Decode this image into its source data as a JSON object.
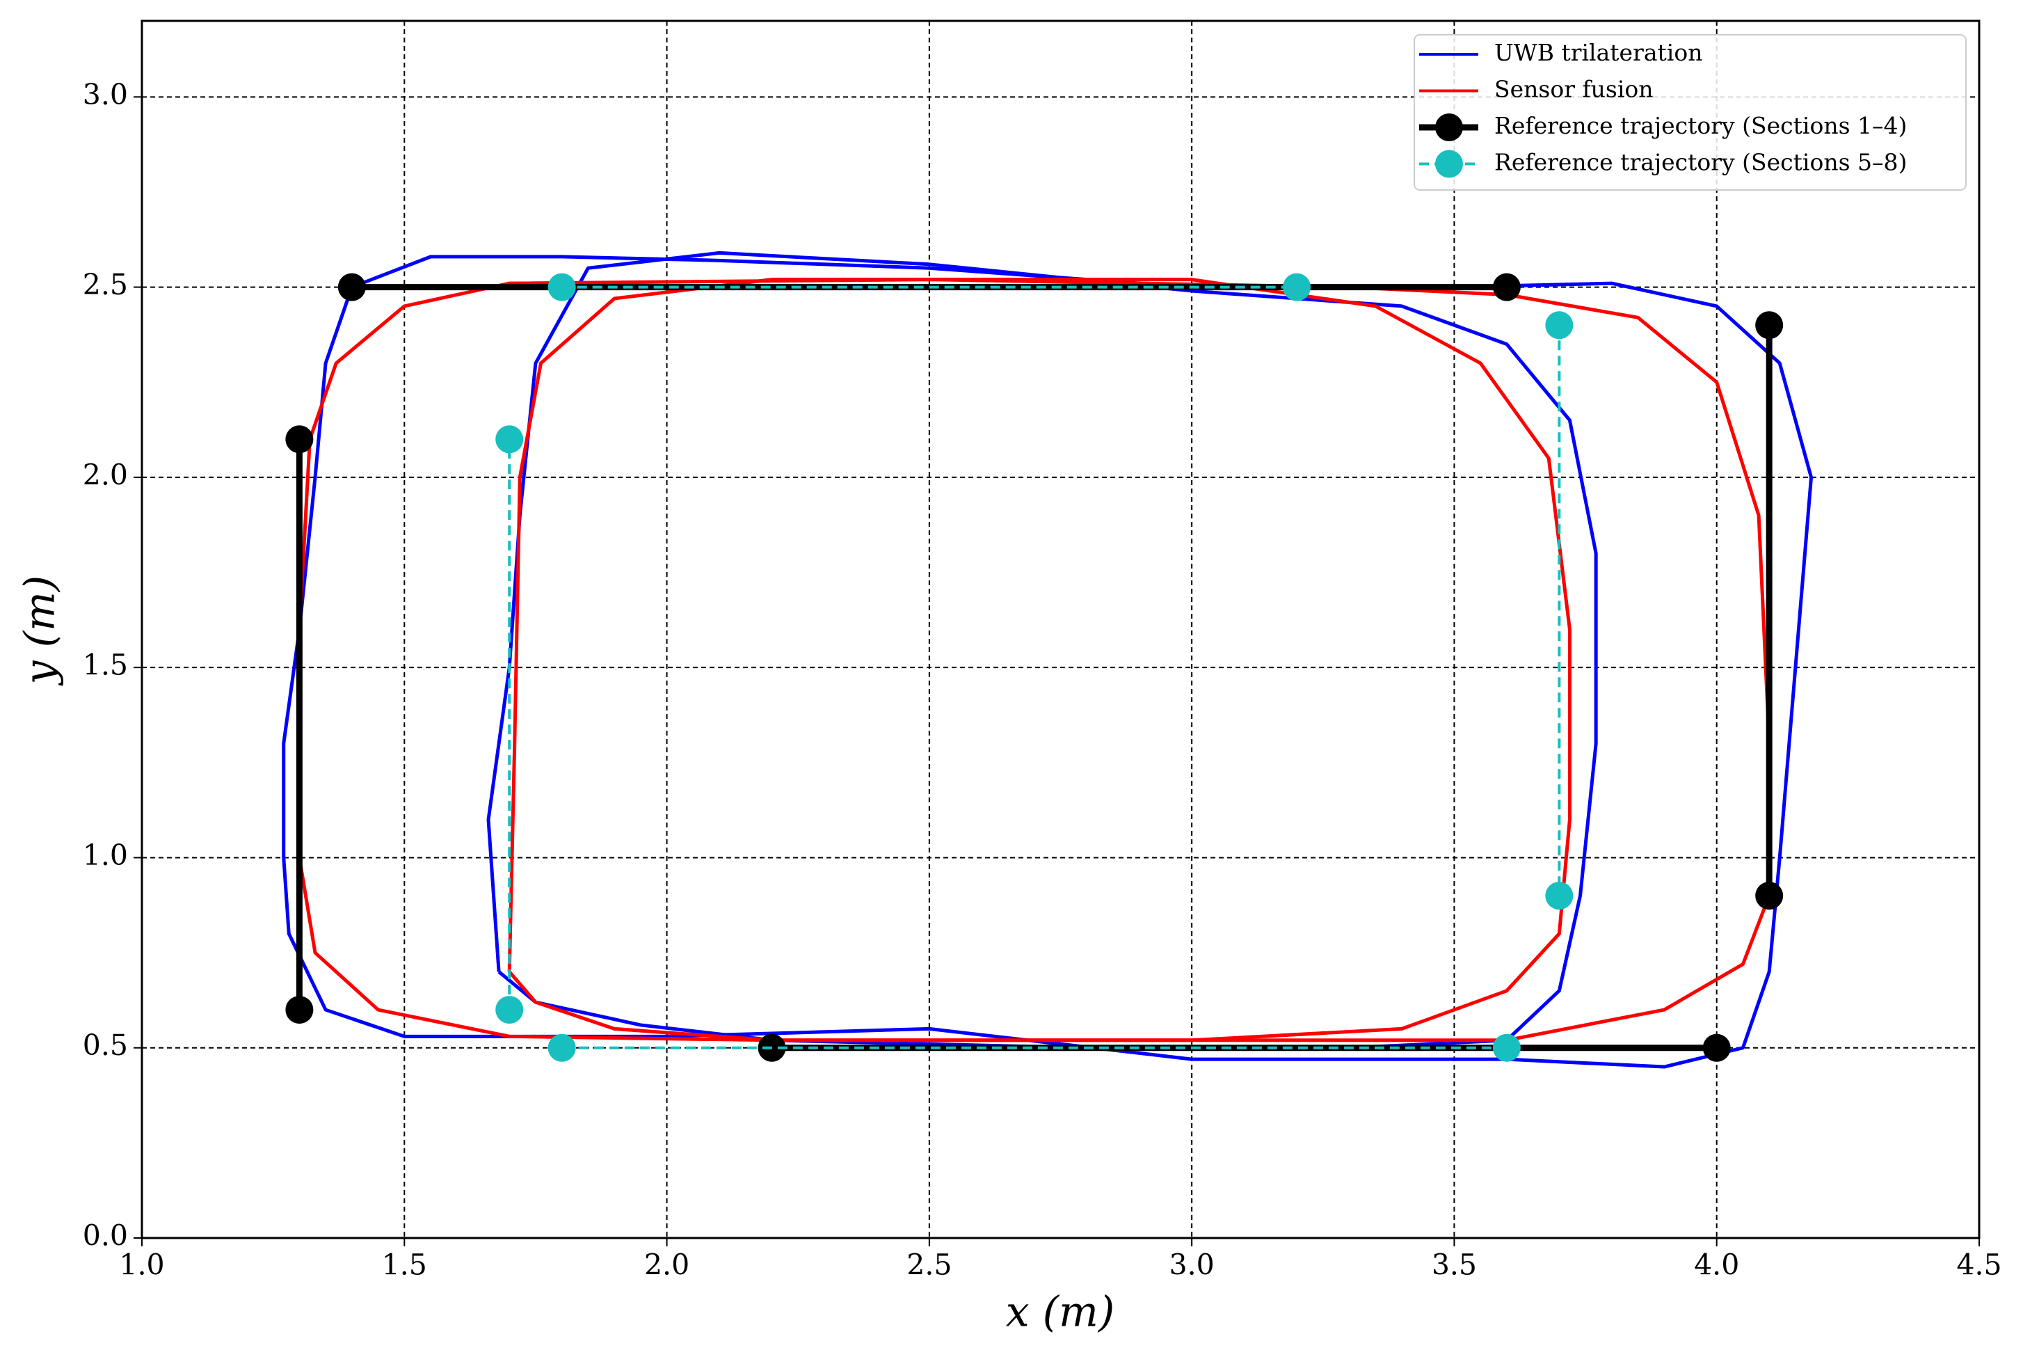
{
  "chart_data": {
    "type": "line",
    "xlabel": "x (m)",
    "ylabel": "y (m)",
    "xlim": [
      1.0,
      4.5
    ],
    "ylim": [
      0,
      3.2
    ],
    "xticks": [
      {
        "value": 1,
        "label": "1.0"
      },
      1.5,
      {
        "value": 2,
        "label": "2.0"
      },
      2.5,
      {
        "value": 3,
        "label": "3.0"
      },
      3.5,
      {
        "value": 4,
        "label": "4.0"
      },
      4.5
    ],
    "yticks": [
      {
        "value": 0,
        "label": "0.0"
      },
      0.5,
      {
        "value": 1,
        "label": "1.0"
      },
      1.5,
      {
        "value": 2,
        "label": "2.0"
      },
      2.5,
      {
        "value": 3,
        "label": "3.0"
      }
    ],
    "grid": true,
    "legend": "upper right",
    "series": [
      {
        "name": "UWB trilateration",
        "color": "#0000ff",
        "markers": false,
        "dashed": false,
        "x": [
          1.27,
          1.27,
          1.3,
          1.33,
          1.35,
          1.4,
          1.55,
          1.8,
          2.1,
          2.5,
          3.0,
          3.5,
          3.8,
          4.0,
          4.12,
          4.18,
          4.15,
          4.12,
          4.1,
          4.05,
          3.9,
          3.6,
          3.0,
          2.5,
          2.0,
          1.5,
          1.35,
          1.28,
          1.27,
          null,
          1.68,
          1.66,
          1.7,
          1.72,
          1.75,
          1.85,
          2.1,
          2.5,
          3.0,
          3.4,
          3.6,
          3.72,
          3.77,
          3.77,
          3.74,
          3.7,
          3.6,
          3.3,
          2.8,
          2.2,
          1.95,
          1.75,
          1.68
        ],
        "values": [
          1.0,
          1.3,
          1.6,
          2.0,
          2.3,
          2.5,
          2.58,
          2.58,
          2.57,
          2.55,
          2.5,
          2.5,
          2.51,
          2.45,
          2.3,
          2.0,
          1.5,
          1.0,
          0.7,
          0.5,
          0.45,
          0.47,
          0.47,
          0.55,
          0.53,
          0.53,
          0.6,
          0.8,
          1.0,
          null,
          0.7,
          1.1,
          1.5,
          1.9,
          2.3,
          2.55,
          2.59,
          2.56,
          2.49,
          2.45,
          2.35,
          2.15,
          1.8,
          1.3,
          0.9,
          0.65,
          0.52,
          0.5,
          0.5,
          0.52,
          0.56,
          0.62,
          0.7
        ]
      },
      {
        "name": "Sensor fusion",
        "color": "#ff0000",
        "markers": false,
        "dashed": false,
        "x": [
          1.3,
          1.3,
          1.32,
          1.37,
          1.5,
          1.7,
          2.5,
          3.3,
          3.6,
          3.85,
          4.0,
          4.08,
          4.1,
          4.1,
          4.05,
          3.9,
          3.6,
          3.0,
          2.2,
          1.7,
          1.45,
          1.33,
          1.3,
          null,
          1.7,
          1.71,
          1.72,
          1.76,
          1.9,
          2.2,
          3.0,
          3.35,
          3.55,
          3.68,
          3.72,
          3.72,
          3.7,
          3.6,
          3.4,
          3.0,
          2.2,
          1.9,
          1.75,
          1.7
        ],
        "values": [
          1.0,
          1.6,
          2.1,
          2.3,
          2.45,
          2.51,
          2.52,
          2.5,
          2.48,
          2.42,
          2.25,
          1.9,
          1.3,
          0.9,
          0.72,
          0.6,
          0.52,
          0.52,
          0.52,
          0.53,
          0.6,
          0.75,
          1.0,
          null,
          0.7,
          1.3,
          2.0,
          2.3,
          2.47,
          2.52,
          2.52,
          2.45,
          2.3,
          2.05,
          1.6,
          1.1,
          0.8,
          0.65,
          0.55,
          0.52,
          0.52,
          0.55,
          0.62,
          0.7
        ]
      },
      {
        "name": "Reference trajectory (Sections 1–4)",
        "color": "#000000",
        "markers": true,
        "dashed": false,
        "x": [
          1.3,
          1.3,
          null,
          1.4,
          3.6,
          null,
          4.1,
          4.1,
          null,
          4.0,
          2.2
        ],
        "values": [
          0.6,
          2.1,
          null,
          2.5,
          2.5,
          null,
          2.4,
          0.9,
          null,
          0.5,
          0.5
        ]
      },
      {
        "name": "Reference trajectory (Sections 5–8)",
        "color": "#17bfbf",
        "markers": true,
        "dashed": true,
        "x": [
          1.7,
          1.7,
          null,
          1.8,
          3.2,
          null,
          3.7,
          3.7,
          null,
          3.6,
          1.8
        ],
        "values": [
          0.6,
          2.1,
          null,
          2.5,
          2.5,
          null,
          2.4,
          0.9,
          null,
          0.5,
          0.5
        ]
      }
    ]
  }
}
